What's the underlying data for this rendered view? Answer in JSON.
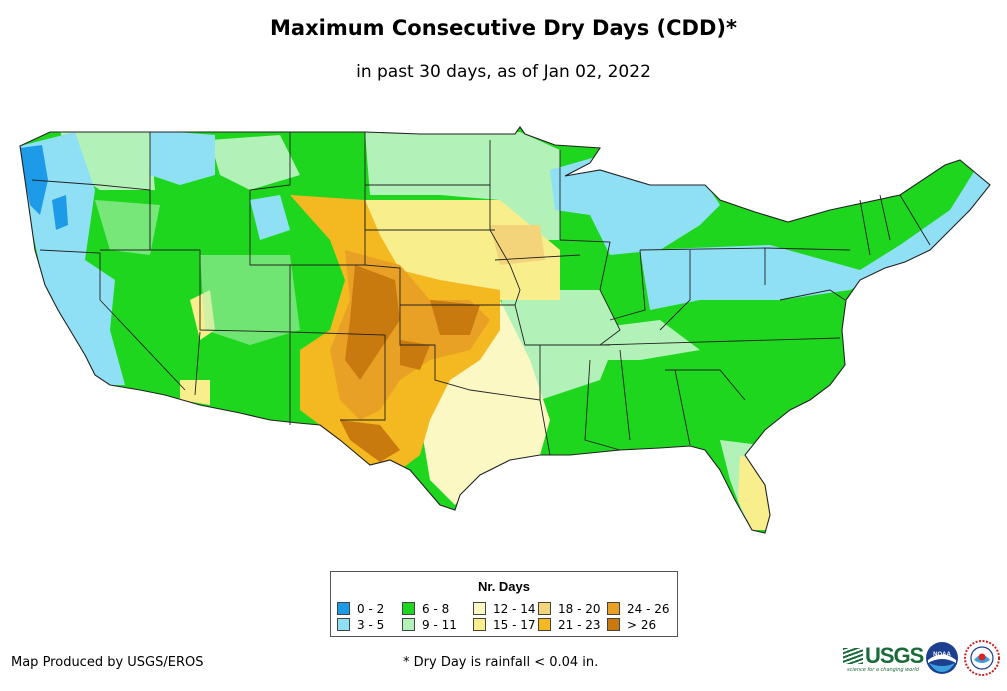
{
  "title": "Maximum Consecutive Dry Days (CDD)*",
  "subtitle": "in past 30 days, as of Jan 02, 2022",
  "legend": {
    "title": "Nr. Days",
    "items": [
      {
        "label": "0 - 2",
        "color": "#1e9be8"
      },
      {
        "label": "3 - 5",
        "color": "#8fe0f5"
      },
      {
        "label": "6 - 8",
        "color": "#1fd61f"
      },
      {
        "label": "9 - 11",
        "color": "#b2f2b8"
      },
      {
        "label": "12 - 14",
        "color": "#fbf8c4"
      },
      {
        "label": "15 - 17",
        "color": "#f8ee8c"
      },
      {
        "label": "18 - 20",
        "color": "#f3d47a"
      },
      {
        "label": "21 - 23",
        "color": "#f4b820"
      },
      {
        "label": "24 - 26",
        "color": "#e9a125"
      },
      {
        "label": "> 26",
        "color": "#c97a0f"
      }
    ]
  },
  "credit": "Map Produced by USGS/EROS",
  "footnote": "* Dry Day is rainfall < 0.04 in.",
  "logos": {
    "usgs": "USGS",
    "usgs_tagline": "science for a changing world",
    "noaa": "NOAA"
  }
}
